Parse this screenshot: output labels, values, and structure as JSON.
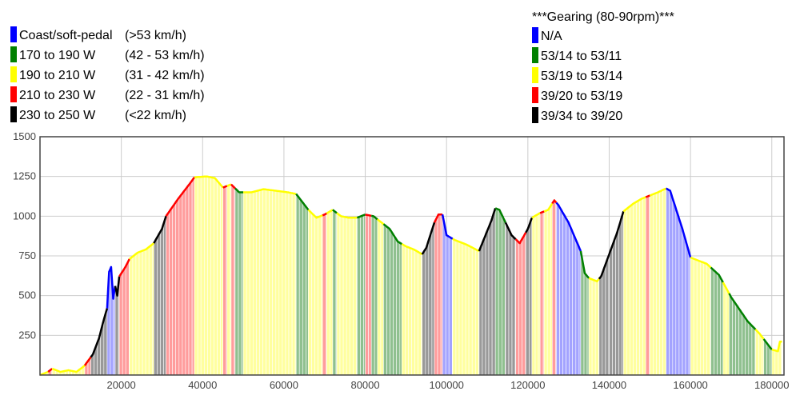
{
  "legend_power": [
    {
      "label": "Coast/soft-pedal",
      "speed": "(>53 km/h)",
      "color": "#0000ff"
    },
    {
      "label": "170 to 190 W",
      "speed": "(42 - 53 km/h)",
      "color": "#008000"
    },
    {
      "label": "190 to 210 W",
      "speed": "(31 - 42 km/h)",
      "color": "#ffff00"
    },
    {
      "label": "210 to 230 W",
      "speed": "(22 - 31 km/h)",
      "color": "#ff0000"
    },
    {
      "label": "230 to 250 W",
      "speed": "(<22 km/h)",
      "color": "#000000"
    }
  ],
  "legend_gearing": {
    "title": "***Gearing (80-90rpm)***",
    "items": [
      {
        "label": "N/A",
        "color": "#0000ff"
      },
      {
        "label": "53/14 to 53/11",
        "color": "#008000"
      },
      {
        "label": "53/19 to 53/14",
        "color": "#ffff00"
      },
      {
        "label": "39/20 to 53/19",
        "color": "#ff0000"
      },
      {
        "label": "39/34 to 39/20",
        "color": "#000000"
      }
    ]
  },
  "chart_data": {
    "type": "area",
    "xlim": [
      0,
      183000
    ],
    "ylim": [
      0,
      1500
    ],
    "x_ticks": [
      20000,
      40000,
      60000,
      80000,
      100000,
      120000,
      140000,
      160000,
      180000
    ],
    "y_ticks": [
      250,
      500,
      750,
      1000,
      1250,
      1500
    ],
    "grid": true,
    "colors": {
      "blue": "#0000ff",
      "green": "#008000",
      "yellow": "#ffff00",
      "red": "#ff0000",
      "black": "#000000"
    },
    "profile": [
      [
        0,
        0
      ],
      [
        2000,
        20
      ],
      [
        3000,
        40
      ],
      [
        5000,
        20
      ],
      [
        7000,
        30
      ],
      [
        9000,
        20
      ],
      [
        11000,
        60
      ],
      [
        13000,
        130
      ],
      [
        14500,
        230
      ],
      [
        15500,
        330
      ],
      [
        16500,
        420
      ],
      [
        17000,
        650
      ],
      [
        17500,
        680
      ],
      [
        18000,
        480
      ],
      [
        18500,
        560
      ],
      [
        19000,
        500
      ],
      [
        19500,
        620
      ],
      [
        21000,
        680
      ],
      [
        22000,
        730
      ],
      [
        24000,
        770
      ],
      [
        26000,
        790
      ],
      [
        28000,
        830
      ],
      [
        30000,
        920
      ],
      [
        31000,
        1000
      ],
      [
        34000,
        1110
      ],
      [
        37000,
        1210
      ],
      [
        38000,
        1245
      ],
      [
        41000,
        1250
      ],
      [
        43000,
        1240
      ],
      [
        45000,
        1180
      ],
      [
        47000,
        1200
      ],
      [
        49000,
        1150
      ],
      [
        52000,
        1150
      ],
      [
        55000,
        1170
      ],
      [
        58000,
        1160
      ],
      [
        61000,
        1150
      ],
      [
        63000,
        1140
      ],
      [
        66000,
        1040
      ],
      [
        68000,
        990
      ],
      [
        70000,
        1010
      ],
      [
        72000,
        1040
      ],
      [
        74000,
        1000
      ],
      [
        76000,
        990
      ],
      [
        78000,
        990
      ],
      [
        80000,
        1010
      ],
      [
        82000,
        1000
      ],
      [
        84000,
        960
      ],
      [
        86000,
        920
      ],
      [
        88000,
        840
      ],
      [
        90000,
        810
      ],
      [
        92000,
        790
      ],
      [
        94000,
        760
      ],
      [
        95000,
        800
      ],
      [
        97000,
        960
      ],
      [
        98000,
        1010
      ],
      [
        99000,
        1010
      ],
      [
        100000,
        880
      ],
      [
        102000,
        850
      ],
      [
        105000,
        820
      ],
      [
        108000,
        780
      ],
      [
        111000,
        970
      ],
      [
        112000,
        1050
      ],
      [
        113000,
        1040
      ],
      [
        116000,
        880
      ],
      [
        118000,
        830
      ],
      [
        120000,
        920
      ],
      [
        121000,
        990
      ],
      [
        123000,
        1020
      ],
      [
        125000,
        1040
      ],
      [
        126500,
        1100
      ],
      [
        127500,
        1070
      ],
      [
        130000,
        960
      ],
      [
        133000,
        780
      ],
      [
        134000,
        640
      ],
      [
        135000,
        610
      ],
      [
        137000,
        590
      ],
      [
        138000,
        620
      ],
      [
        140000,
        760
      ],
      [
        142000,
        900
      ],
      [
        143500,
        1030
      ],
      [
        146000,
        1080
      ],
      [
        148000,
        1110
      ],
      [
        150000,
        1130
      ],
      [
        152000,
        1150
      ],
      [
        154000,
        1175
      ],
      [
        155000,
        1160
      ],
      [
        158000,
        920
      ],
      [
        160000,
        740
      ],
      [
        164000,
        700
      ],
      [
        167000,
        630
      ],
      [
        170000,
        490
      ],
      [
        174000,
        340
      ],
      [
        177000,
        260
      ],
      [
        180000,
        160
      ],
      [
        181500,
        150
      ],
      [
        182000,
        210
      ]
    ],
    "segments": [
      [
        0,
        2000,
        "yellow"
      ],
      [
        2000,
        3000,
        "red"
      ],
      [
        3000,
        12500,
        "yellow"
      ],
      [
        11000,
        12500,
        "red"
      ],
      [
        12500,
        16500,
        "black"
      ],
      [
        16500,
        18500,
        "blue"
      ],
      [
        18500,
        19500,
        "black"
      ],
      [
        19500,
        22000,
        "red"
      ],
      [
        22000,
        28000,
        "yellow"
      ],
      [
        28000,
        31000,
        "black"
      ],
      [
        31000,
        38000,
        "red"
      ],
      [
        38000,
        45000,
        "yellow"
      ],
      [
        45000,
        46000,
        "red"
      ],
      [
        46000,
        47000,
        "yellow"
      ],
      [
        47000,
        48000,
        "red"
      ],
      [
        48000,
        50000,
        "green"
      ],
      [
        50000,
        63000,
        "yellow"
      ],
      [
        63000,
        66000,
        "green"
      ],
      [
        66000,
        69500,
        "yellow"
      ],
      [
        69500,
        70500,
        "red"
      ],
      [
        70500,
        72000,
        "yellow"
      ],
      [
        72000,
        73000,
        "green"
      ],
      [
        73000,
        78000,
        "yellow"
      ],
      [
        78000,
        80000,
        "green"
      ],
      [
        80000,
        81500,
        "red"
      ],
      [
        81500,
        83000,
        "green"
      ],
      [
        83000,
        84500,
        "yellow"
      ],
      [
        84500,
        89000,
        "green"
      ],
      [
        89000,
        94000,
        "yellow"
      ],
      [
        94000,
        97000,
        "black"
      ],
      [
        97000,
        99000,
        "red"
      ],
      [
        99000,
        101500,
        "blue"
      ],
      [
        101500,
        108000,
        "yellow"
      ],
      [
        108000,
        112000,
        "black"
      ],
      [
        112000,
        114500,
        "green"
      ],
      [
        114500,
        117000,
        "black"
      ],
      [
        117000,
        119500,
        "red"
      ],
      [
        119500,
        121000,
        "black"
      ],
      [
        121000,
        123000,
        "yellow"
      ],
      [
        123000,
        124000,
        "red"
      ],
      [
        124000,
        126000,
        "yellow"
      ],
      [
        126000,
        127000,
        "red"
      ],
      [
        127000,
        133000,
        "blue"
      ],
      [
        133000,
        135000,
        "green"
      ],
      [
        135000,
        137500,
        "yellow"
      ],
      [
        137500,
        140000,
        "black"
      ],
      [
        140000,
        143500,
        "black"
      ],
      [
        143500,
        149000,
        "yellow"
      ],
      [
        149000,
        150000,
        "red"
      ],
      [
        150000,
        154000,
        "yellow"
      ],
      [
        154000,
        160000,
        "blue"
      ],
      [
        160000,
        165000,
        "yellow"
      ],
      [
        165000,
        168000,
        "green"
      ],
      [
        168000,
        169500,
        "yellow"
      ],
      [
        169500,
        176000,
        "green"
      ],
      [
        176000,
        178000,
        "yellow"
      ],
      [
        178000,
        180000,
        "green"
      ],
      [
        180000,
        182500,
        "yellow"
      ]
    ]
  }
}
